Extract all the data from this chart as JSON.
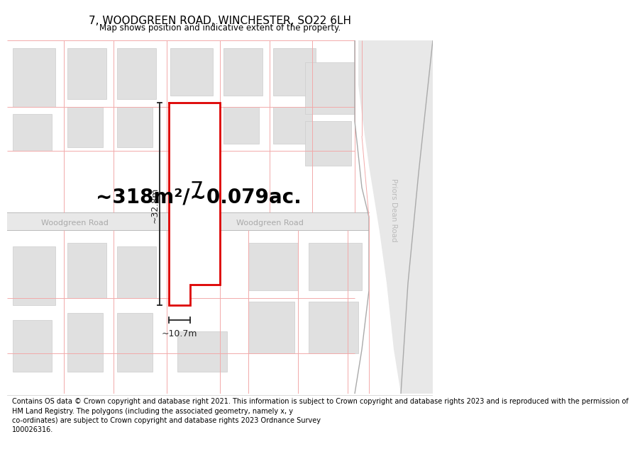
{
  "title": "7, WOODGREEN ROAD, WINCHESTER, SO22 6LH",
  "subtitle": "Map shows position and indicative extent of the property.",
  "area_label": "~318m²/~0.079ac.",
  "plot_number": "7",
  "dim_width": "~10.7m",
  "dim_height": "~32.8m",
  "road_label_left": "Woodgreen Road",
  "road_label_right": "Woodgreen Road",
  "road_label_diagonal": "Priors Dean Road",
  "footer": "Contains OS data © Crown copyright and database right 2021. This information is subject to Crown copyright and database rights 2023 and is reproduced with the permission of\nHM Land Registry. The polygons (including the associated geometry, namely x, y\nco-ordinates) are subject to Crown copyright and database rights 2023 Ordnance Survey\n100026316.",
  "map_bg": "#f7f7f7",
  "plot_fill": "#ffffff",
  "plot_outline_color": "#dd0000",
  "building_color": "#e0e0e0",
  "building_edge": "#cccccc",
  "street_line_color": "#f2aaaa",
  "road_grey": "#dddddd",
  "dim_color": "#222222",
  "road_text_color": "#aaaaaa",
  "title_fontsize": 11,
  "subtitle_fontsize": 8.5,
  "area_fontsize": 20,
  "footer_fontsize": 7.0,
  "plot_label_fontsize": 22
}
